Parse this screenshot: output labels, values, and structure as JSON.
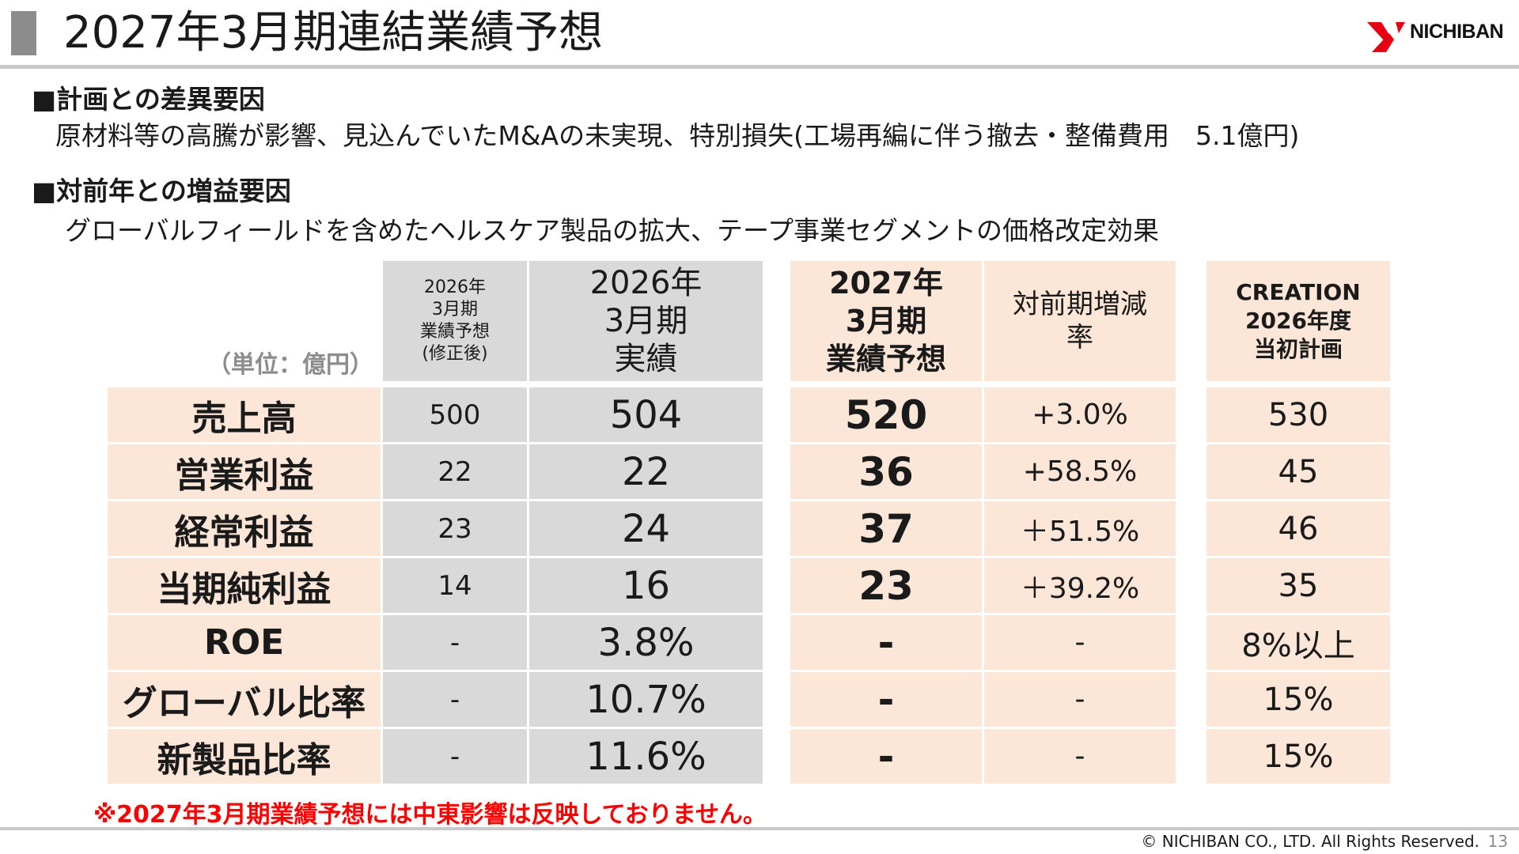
{
  "header": {
    "title": "2027年3月期連結業績予想",
    "logo_text": "NICHIBAN",
    "logo_color": "#e60012"
  },
  "sections": [
    {
      "heading": "■計画との差異要因",
      "text": "原材料等の高騰が影響、見込んでいたM&Aの未実現、特別損失(工場再編に伴う撤去・整備費用　5.1億円)"
    },
    {
      "heading": "■対前年との増益要因",
      "text": "グローバルフィールドを含めたヘルスケア製品の拡大、テープ事業セグメントの価格改定効果"
    }
  ],
  "table": {
    "unit_label": "（単位：億円）",
    "columns": [
      {
        "lines": [
          "2026年",
          "3月期",
          "業績予想",
          "(修正後)"
        ]
      },
      {
        "lines": [
          "2026年",
          "3月期",
          "実績"
        ]
      },
      {
        "lines": [
          "2027年",
          "3月期",
          "業績予想"
        ]
      },
      {
        "lines": [
          "対前期増減",
          "率"
        ]
      },
      {
        "lines": [
          "CREATION",
          "2026年度",
          "当初計画"
        ]
      }
    ],
    "rows": [
      {
        "label": "売上高",
        "values": [
          "500",
          "504",
          "520",
          "+3.0%",
          "530"
        ]
      },
      {
        "label": "営業利益",
        "values": [
          "22",
          "22",
          "36",
          "+58.5%",
          "45"
        ]
      },
      {
        "label": "経常利益",
        "values": [
          "23",
          "24",
          "37",
          "＋51.5%",
          "46"
        ]
      },
      {
        "label": "当期純利益",
        "values": [
          "14",
          "16",
          "23",
          "＋39.2%",
          "35"
        ]
      },
      {
        "label": "ROE",
        "values": [
          "-",
          "3.8%",
          "-",
          "-",
          "8%以上"
        ]
      },
      {
        "label": "グローバル比率",
        "values": [
          "-",
          "10.7%",
          "-",
          "-",
          "15%"
        ]
      },
      {
        "label": "新製品比率",
        "values": [
          "-",
          "11.6%",
          "-",
          "-",
          "15%"
        ]
      }
    ]
  },
  "note": "※2027年3月期業績予想には中東影響は反映しておりません。",
  "footer": {
    "copyright": "© NICHIBAN CO., LTD. All Rights Reserved.",
    "page_number": "13"
  }
}
